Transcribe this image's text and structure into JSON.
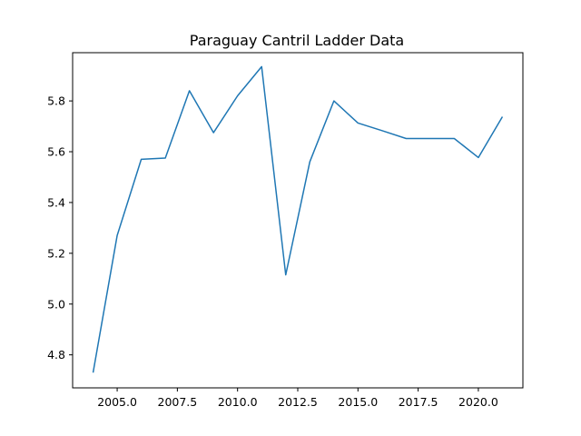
{
  "chart_data": {
    "type": "line",
    "title": "Paraguay Cantril Ladder Data",
    "xlabel": "",
    "ylabel": "",
    "xlim": [
      2003.15,
      2021.85
    ],
    "ylim": [
      4.67,
      5.99
    ],
    "grid": false,
    "x_ticks": [
      2005.0,
      2007.5,
      2010.0,
      2012.5,
      2015.0,
      2017.5,
      2020.0
    ],
    "x_tick_labels": [
      "2005.0",
      "2007.5",
      "2010.0",
      "2012.5",
      "2015.0",
      "2017.5",
      "2020.0"
    ],
    "y_ticks": [
      4.8,
      5.0,
      5.2,
      5.4,
      5.6,
      5.8
    ],
    "y_tick_labels": [
      "4.8",
      "5.0",
      "5.2",
      "5.4",
      "5.6",
      "5.8"
    ],
    "series": [
      {
        "color": "#1f77b4",
        "x": [
          2004,
          2005,
          2006,
          2007,
          2008,
          2009,
          2010,
          2011,
          2012,
          2013,
          2014,
          2015,
          2016,
          2017,
          2018,
          2019,
          2020,
          2021
        ],
        "values": [
          4.73,
          5.27,
          5.57,
          5.575,
          5.84,
          5.675,
          5.82,
          5.935,
          5.115,
          5.56,
          5.8,
          5.713,
          5.683,
          5.652,
          5.652,
          5.652,
          5.577,
          5.738
        ]
      }
    ]
  }
}
